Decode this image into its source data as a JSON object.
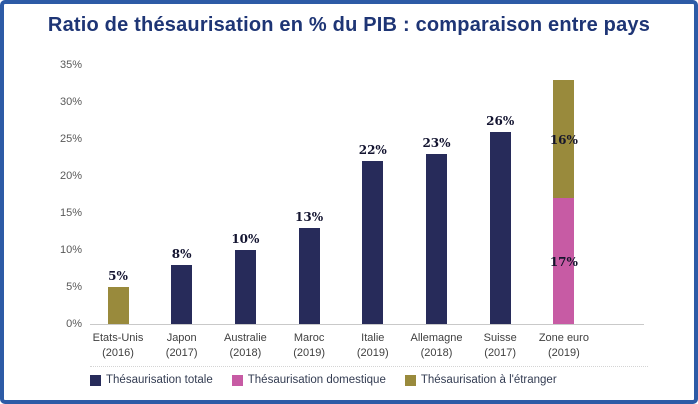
{
  "frame": {
    "border_color": "#2d5ba6",
    "background_color": "#ffffff",
    "title_color": "#1e3575"
  },
  "title": "Ratio de thésaurisation en % du PIB : comparaison entre pays",
  "chart_data": {
    "type": "bar",
    "stacked": true,
    "title": "Ratio de thésaurisation en % du PIB : comparaison entre pays",
    "xlabel": "",
    "ylabel": "",
    "ylim": [
      0,
      35
    ],
    "ytick_step": 5,
    "yticks": [
      "0%",
      "5%",
      "10%",
      "15%",
      "20%",
      "25%",
      "30%",
      "35%"
    ],
    "grid": false,
    "legend_position": "bottom",
    "axis_line_color": "#c9c9c9",
    "series_colors": {
      "Thésaurisation totale": "#272b5a",
      "Thésaurisation domestique": "#c75ba4",
      "Thésaurisation à l'étranger": "#998a3c"
    },
    "legend": [
      "Thésaurisation totale",
      "Thésaurisation domestique",
      "Thésaurisation à l'étranger"
    ],
    "bars": [
      {
        "category": "Etats-Unis",
        "year": "(2016)",
        "label": "5%",
        "segments": [
          {
            "series": "Thésaurisation à l'étranger",
            "value": 5
          }
        ]
      },
      {
        "category": "Japon",
        "year": "(2017)",
        "label": "8%",
        "segments": [
          {
            "series": "Thésaurisation totale",
            "value": 8
          }
        ]
      },
      {
        "category": "Australie",
        "year": "(2018)",
        "label": "10%",
        "segments": [
          {
            "series": "Thésaurisation totale",
            "value": 10
          }
        ]
      },
      {
        "category": "Maroc",
        "year": "(2019)",
        "label": "13%",
        "segments": [
          {
            "series": "Thésaurisation totale",
            "value": 13
          }
        ]
      },
      {
        "category": "Italie",
        "year": "(2019)",
        "label": "22%",
        "segments": [
          {
            "series": "Thésaurisation totale",
            "value": 22
          }
        ]
      },
      {
        "category": "Allemagne",
        "year": "(2018)",
        "label": "23%",
        "segments": [
          {
            "series": "Thésaurisation totale",
            "value": 23
          }
        ]
      },
      {
        "category": "Suisse",
        "year": "(2017)",
        "label": "26%",
        "segments": [
          {
            "series": "Thésaurisation totale",
            "value": 26
          }
        ]
      },
      {
        "category": "Zone euro",
        "year": "(2019)",
        "label": null,
        "segments": [
          {
            "series": "Thésaurisation domestique",
            "value": 17,
            "inside_label": "17%"
          },
          {
            "series": "Thésaurisation à l'étranger",
            "value": 16,
            "inside_label": "16%"
          }
        ]
      }
    ]
  }
}
